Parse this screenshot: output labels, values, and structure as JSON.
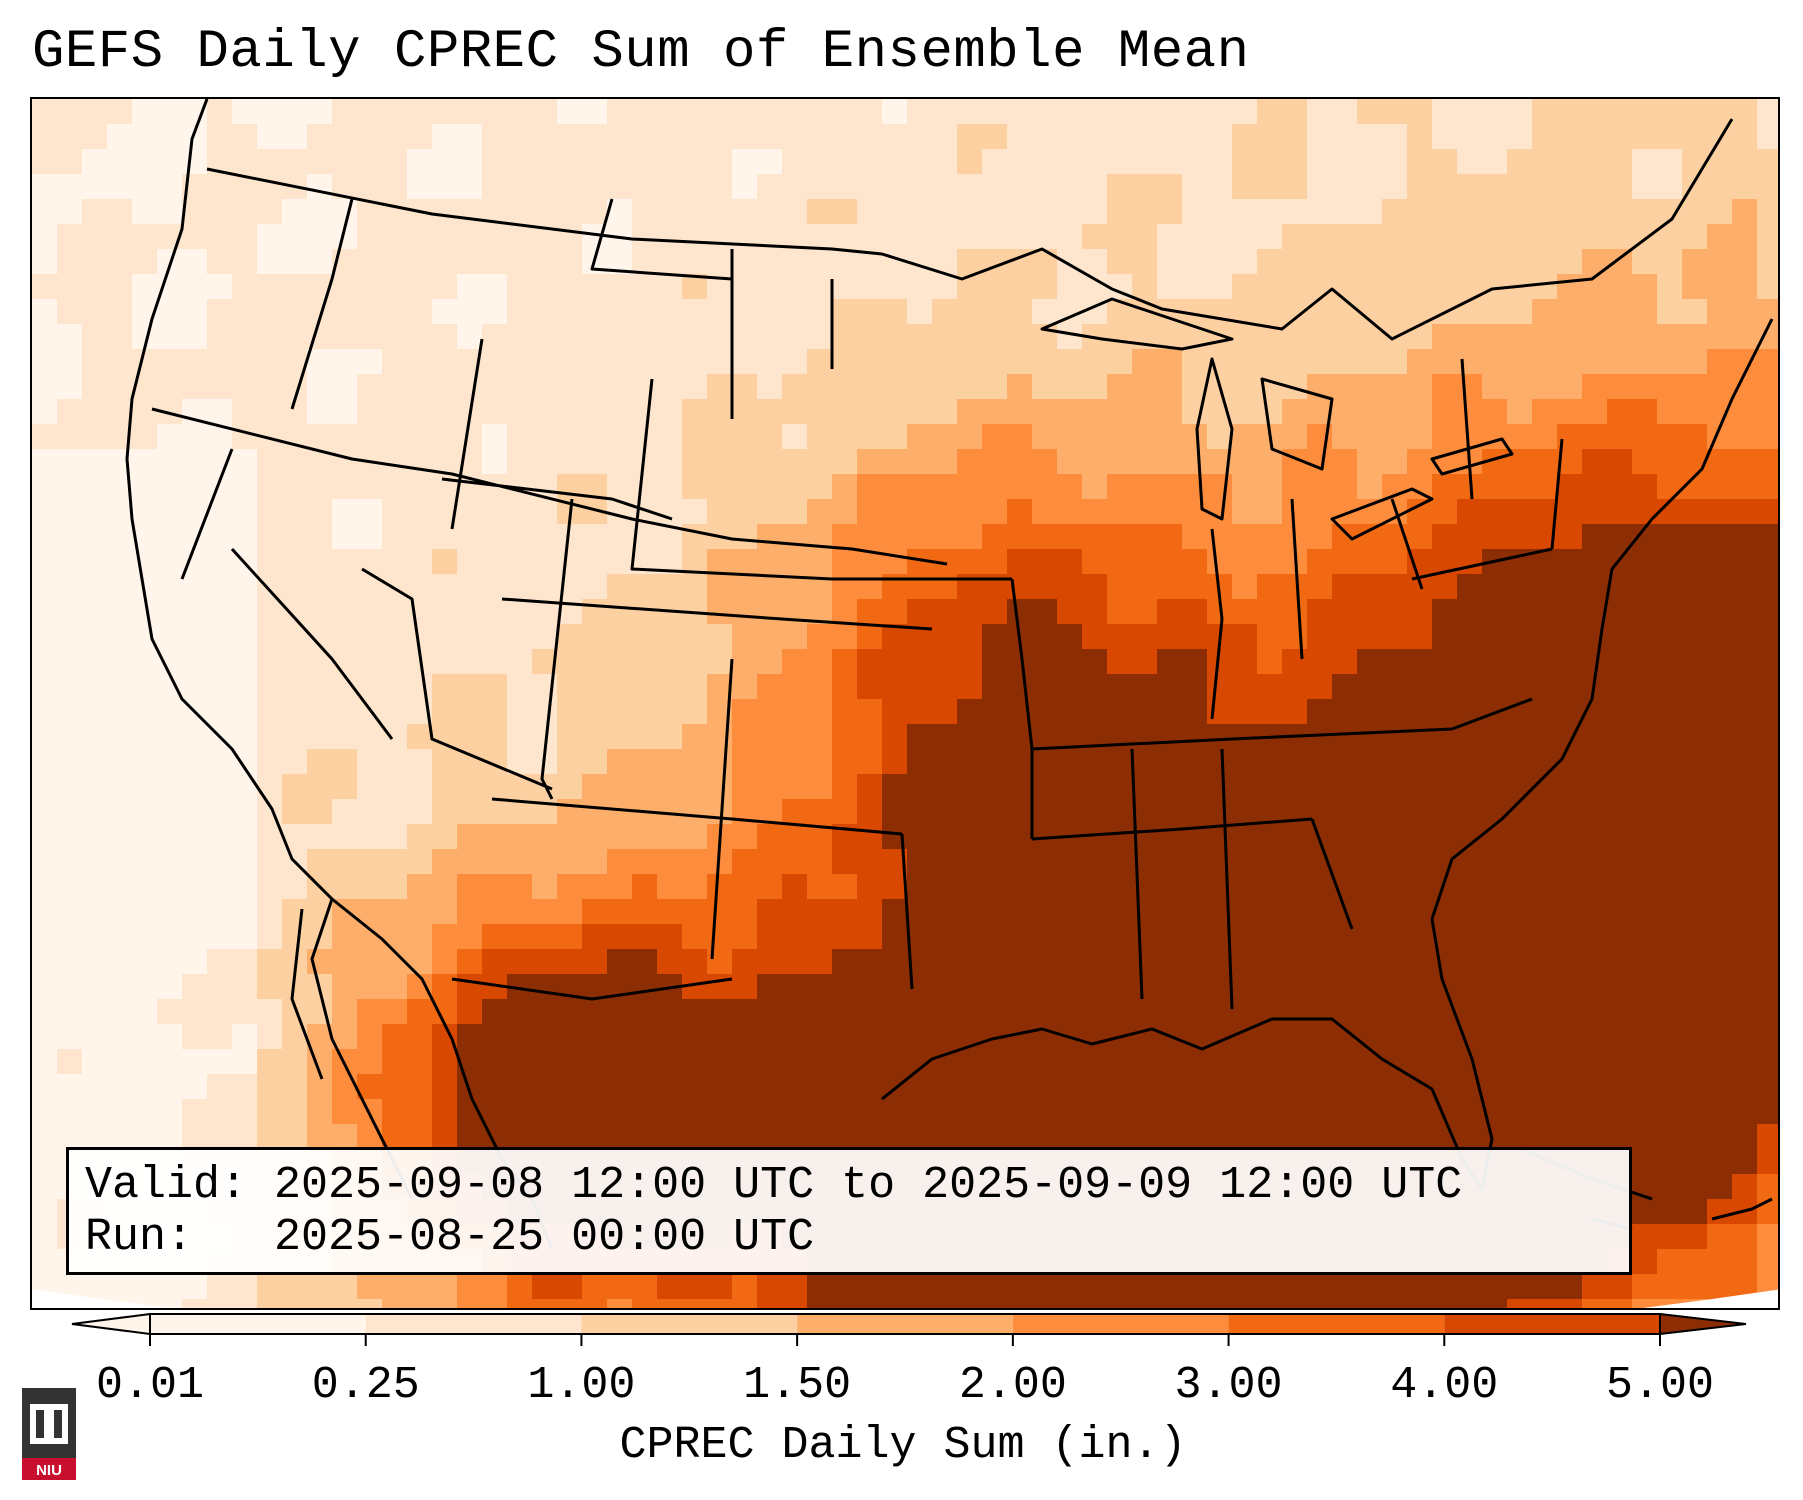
{
  "title": "GEFS Daily CPREC Sum of Ensemble Mean",
  "info": {
    "valid_line": "Valid: 2025-09-08 12:00 UTC to 2025-09-09 12:00 UTC",
    "run_line": "Run:   2025-08-25 00:00 UTC"
  },
  "colorbar": {
    "label": "CPREC Daily Sum (in.)",
    "ticks": [
      "0.01",
      "0.25",
      "1.00",
      "1.50",
      "2.00",
      "3.00",
      "4.00",
      "5.00"
    ],
    "colors": [
      "#fff5eb",
      "#fee6ce",
      "#fdd0a2",
      "#fdae6b",
      "#fd8d3c",
      "#f16913",
      "#d94801",
      "#8c2d04"
    ],
    "extend": "both"
  },
  "logo": {
    "text": "NIU",
    "brand_color": "#c8102e"
  },
  "legend_colors": {
    "borders": "#000000"
  }
}
